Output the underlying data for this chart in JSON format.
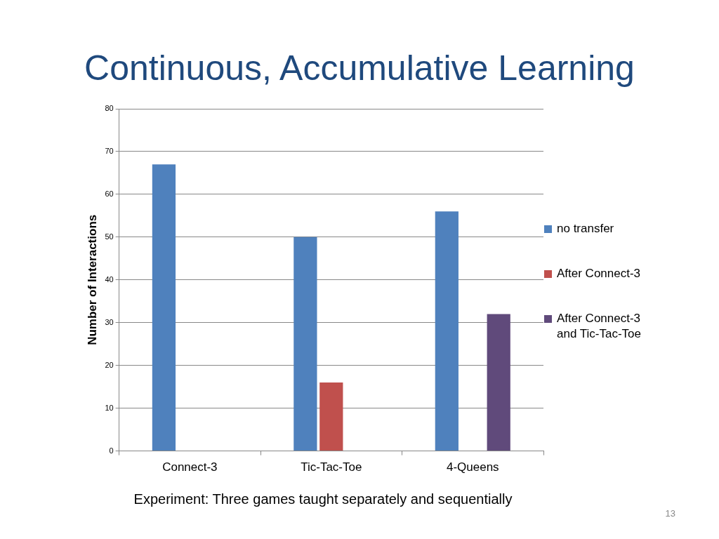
{
  "chart_data": {
    "type": "bar",
    "title": "Continuous, Accumulative Learning",
    "ylabel": "Number of Interactions",
    "categories": [
      "Connect-3",
      "Tic-Tac-Toe",
      "4-Queens"
    ],
    "series": [
      {
        "name": "no transfer",
        "color": "#4f81bd",
        "values": [
          67,
          50,
          56
        ]
      },
      {
        "name": "After Connect-3",
        "color": "#c0504d",
        "values": [
          null,
          16,
          null
        ]
      },
      {
        "name": "After Connect-3\nand Tic-Tac-Toe",
        "color": "#604a7b",
        "values": [
          null,
          null,
          32
        ]
      }
    ],
    "ylim": [
      0,
      80
    ],
    "yticks": [
      0,
      10,
      20,
      30,
      40,
      50,
      60,
      70,
      80
    ],
    "grid": "y",
    "legend": "right",
    "annotations": [
      "Experiment: Three games taught separately and sequentially",
      "13"
    ]
  }
}
